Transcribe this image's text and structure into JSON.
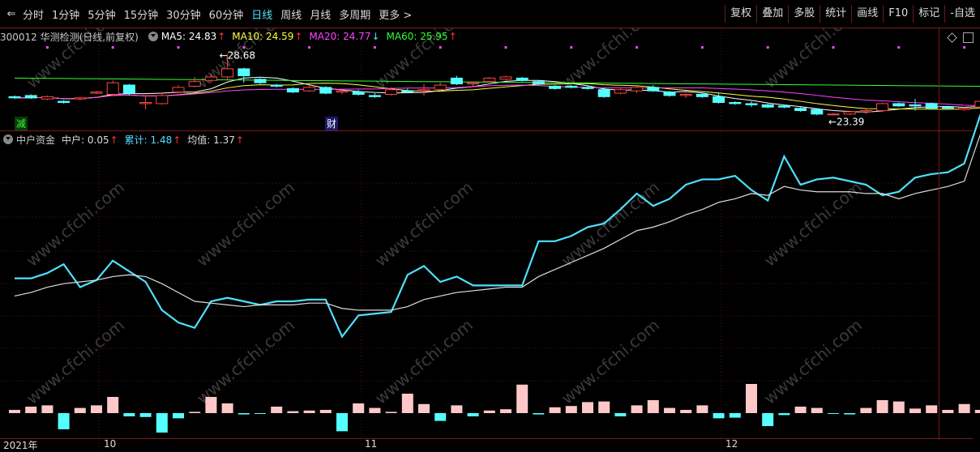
{
  "tabs": [
    "分时",
    "1分钟",
    "5分钟",
    "15分钟",
    "30分钟",
    "60分钟",
    "日线",
    "周线",
    "月线",
    "多周期",
    "更多 >"
  ],
  "active_tab": "日线",
  "right_buttons": [
    "复权",
    "叠加",
    "多股",
    "统计",
    "画线",
    "F10",
    "标记",
    "-自选"
  ],
  "stock": {
    "title": "300012 华测检测(日线,前复权)"
  },
  "ma": [
    {
      "label": "MA5: 24.83",
      "color": "#ffffff",
      "dir": "↑"
    },
    {
      "label": "MA10: 24.59",
      "color": "#ffff44",
      "dir": "↑"
    },
    {
      "label": "MA20: 24.77",
      "color": "#ff44ff",
      "dir": "↓"
    },
    {
      "label": "MA60: 25.95",
      "color": "#33ff33",
      "dir": "↑"
    }
  ],
  "markers": {
    "high": "28.68",
    "low": "23.39",
    "jian": "减",
    "cai": "财"
  },
  "indicator": {
    "name": "中户资金",
    "v1": "中户: 0.05",
    "v1_dir": "↑",
    "v2": "累计: 1.48",
    "v2_dir": "↑",
    "v3": "均值: 1.37",
    "v3_dir": "↑"
  },
  "xaxis": [
    "2021年",
    "10",
    "11",
    "12"
  ],
  "watermark": "www.cfchi.com",
  "chart_data": [
    {
      "type": "candlestick",
      "name": "price",
      "candles": [
        [
          25.0,
          25.1,
          24.8,
          24.9
        ],
        [
          25.1,
          25.2,
          24.8,
          24.9
        ],
        [
          24.8,
          25.1,
          24.7,
          25.0
        ],
        [
          24.6,
          24.7,
          24.4,
          24.5
        ],
        [
          24.8,
          25.0,
          24.7,
          24.9
        ],
        [
          25.3,
          25.5,
          25.2,
          25.4
        ],
        [
          25.2,
          26.4,
          25.1,
          26.2
        ],
        [
          26.0,
          26.1,
          25.1,
          25.3
        ],
        [
          24.4,
          25.1,
          23.9,
          24.5
        ],
        [
          24.4,
          25.3,
          24.3,
          25.1
        ],
        [
          25.4,
          26.0,
          25.3,
          25.8
        ],
        [
          25.9,
          26.7,
          25.8,
          26.3
        ],
        [
          26.4,
          27.0,
          26.2,
          26.7
        ],
        [
          26.7,
          28.68,
          26.5,
          27.4
        ],
        [
          27.4,
          27.5,
          26.2,
          26.8
        ],
        [
          26.5,
          26.6,
          26.1,
          26.2
        ],
        [
          26.0,
          26.1,
          25.8,
          25.9
        ],
        [
          25.7,
          25.8,
          25.3,
          25.4
        ],
        [
          25.5,
          26.0,
          25.4,
          25.8
        ],
        [
          25.8,
          25.9,
          25.2,
          25.3
        ],
        [
          25.4,
          25.6,
          25.2,
          25.5
        ],
        [
          25.4,
          25.6,
          25.1,
          25.2
        ],
        [
          25.1,
          25.3,
          24.9,
          25.0
        ],
        [
          25.2,
          25.8,
          25.1,
          25.6
        ],
        [
          25.5,
          25.7,
          25.3,
          25.4
        ],
        [
          25.5,
          26.1,
          25.1,
          25.6
        ],
        [
          25.6,
          26.2,
          25.5,
          26.0
        ],
        [
          26.6,
          26.8,
          26.0,
          26.1
        ],
        [
          26.1,
          26.3,
          25.9,
          26.2
        ],
        [
          26.3,
          26.7,
          26.2,
          26.6
        ],
        [
          26.5,
          26.8,
          26.4,
          26.7
        ],
        [
          26.6,
          26.7,
          26.3,
          26.4
        ],
        [
          26.3,
          26.4,
          26.0,
          26.1
        ],
        [
          25.9,
          26.0,
          25.6,
          25.7
        ],
        [
          25.9,
          26.0,
          25.7,
          25.8
        ],
        [
          25.8,
          25.9,
          25.6,
          25.7
        ],
        [
          25.6,
          25.8,
          24.9,
          25.0
        ],
        [
          25.3,
          25.8,
          25.2,
          25.6
        ],
        [
          25.5,
          25.9,
          25.3,
          25.8
        ],
        [
          25.8,
          26.0,
          25.4,
          25.5
        ],
        [
          25.4,
          25.5,
          25.0,
          25.1
        ],
        [
          25.1,
          25.3,
          24.9,
          25.2
        ],
        [
          25.2,
          25.3,
          24.9,
          25.0
        ],
        [
          25.0,
          25.3,
          24.4,
          24.5
        ],
        [
          24.5,
          24.6,
          24.3,
          24.4
        ],
        [
          24.4,
          24.6,
          24.1,
          24.3
        ],
        [
          24.3,
          24.4,
          24.0,
          24.1
        ],
        [
          24.2,
          24.3,
          24.0,
          24.1
        ],
        [
          24.0,
          24.1,
          23.7,
          23.8
        ],
        [
          23.9,
          24.0,
          23.4,
          23.5
        ],
        [
          23.5,
          23.6,
          23.39,
          23.5
        ],
        [
          23.5,
          23.8,
          23.4,
          23.7
        ],
        [
          23.7,
          23.9,
          23.5,
          23.8
        ],
        [
          23.8,
          24.5,
          23.7,
          24.4
        ],
        [
          24.4,
          24.5,
          24.1,
          24.2
        ],
        [
          24.3,
          24.8,
          23.8,
          24.2
        ],
        [
          24.4,
          24.5,
          23.9,
          24.0
        ],
        [
          24.1,
          24.2,
          23.9,
          24.0
        ],
        [
          23.9,
          24.1,
          23.8,
          24.0
        ],
        [
          24.1,
          24.9,
          24.0,
          24.6
        ]
      ],
      "ma5_last": 24.83,
      "ma10_last": 24.59,
      "ma20_last": 24.77,
      "ma60_last": 25.95
    },
    {
      "type": "line",
      "name": "中户资金",
      "series": [
        {
          "name": "累计",
          "color": "#4ee0ff",
          "values": [
            0.55,
            0.55,
            0.58,
            0.63,
            0.5,
            0.54,
            0.65,
            0.59,
            0.53,
            0.37,
            0.3,
            0.27,
            0.42,
            0.44,
            0.42,
            0.4,
            0.42,
            0.42,
            0.43,
            0.43,
            0.22,
            0.34,
            0.35,
            0.36,
            0.57,
            0.62,
            0.53,
            0.56,
            0.51,
            0.51,
            0.51,
            0.51,
            0.76,
            0.76,
            0.79,
            0.84,
            0.86,
            0.94,
            1.03,
            0.96,
            1.0,
            1.08,
            1.11,
            1.11,
            1.13,
            1.05,
            0.99,
            1.24,
            1.08,
            1.11,
            1.12,
            1.1,
            1.08,
            1.02,
            1.04,
            1.12,
            1.14,
            1.15,
            1.2,
            1.48
          ]
        },
        {
          "name": "均值",
          "color": "#dddddd",
          "values": [
            0.45,
            0.47,
            0.5,
            0.52,
            0.53,
            0.54,
            0.56,
            0.57,
            0.56,
            0.52,
            0.47,
            0.42,
            0.41,
            0.4,
            0.39,
            0.4,
            0.4,
            0.4,
            0.41,
            0.41,
            0.38,
            0.37,
            0.37,
            0.37,
            0.39,
            0.43,
            0.45,
            0.47,
            0.48,
            0.49,
            0.5,
            0.5,
            0.56,
            0.6,
            0.64,
            0.68,
            0.72,
            0.77,
            0.82,
            0.84,
            0.87,
            0.91,
            0.94,
            0.98,
            1.0,
            1.03,
            1.02,
            1.07,
            1.05,
            1.04,
            1.04,
            1.04,
            1.03,
            1.03,
            1.0,
            1.03,
            1.05,
            1.07,
            1.1,
            1.37
          ]
        }
      ]
    },
    {
      "type": "bar",
      "name": "中户",
      "values": [
        0.05,
        0.1,
        0.12,
        -0.25,
        0.08,
        0.12,
        0.25,
        -0.05,
        -0.06,
        -0.3,
        -0.08,
        0.02,
        0.25,
        0.15,
        -0.02,
        -0.01,
        0.1,
        0.03,
        0.04,
        0.05,
        -0.28,
        0.15,
        0.08,
        0.02,
        0.3,
        0.14,
        -0.12,
        0.12,
        -0.05,
        0.04,
        0.06,
        0.44,
        -0.02,
        0.09,
        0.11,
        0.17,
        0.18,
        -0.05,
        0.12,
        0.2,
        0.08,
        0.05,
        0.12,
        -0.08,
        -0.07,
        0.45,
        -0.2,
        -0.03,
        0.1,
        0.08,
        -0.01,
        -0.02,
        0.08,
        0.2,
        0.18,
        0.07,
        0.12,
        0.05,
        0.14,
        0.05
      ]
    }
  ]
}
